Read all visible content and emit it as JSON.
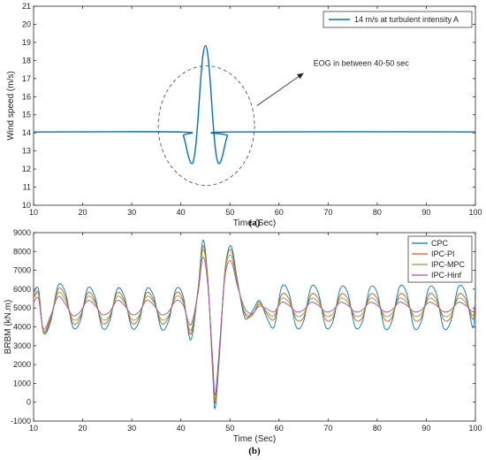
{
  "chart_data": [
    {
      "type": "line",
      "title": "",
      "xlabel": "Time (Sec)",
      "ylabel": "Wind speed (m/s)",
      "xlim": [
        10,
        100
      ],
      "ylim": [
        10,
        21
      ],
      "xticks": [
        10,
        20,
        30,
        40,
        50,
        60,
        70,
        80,
        90,
        100
      ],
      "yticks": [
        10,
        11,
        12,
        13,
        14,
        15,
        16,
        17,
        18,
        19,
        20,
        21
      ],
      "grid": false,
      "legend_position": "top-right",
      "caption": "(a)",
      "annotation": "EOG in between 40-50 sec",
      "series": [
        {
          "name": "14 m/s at turbulent intensity A",
          "color": "#0072BD",
          "x": [
            10,
            40,
            40.5,
            41,
            41.5,
            42,
            42.5,
            43,
            43.5,
            44,
            44.5,
            45,
            45.5,
            46,
            46.5,
            47,
            47.5,
            48,
            48.5,
            49,
            49.5,
            50,
            100
          ],
          "y": [
            14.05,
            14.05,
            13.85,
            13.35,
            12.75,
            12.35,
            12.4,
            13.2,
            14.8,
            16.8,
            18.3,
            18.82,
            18.3,
            16.8,
            14.8,
            13.2,
            12.4,
            12.35,
            12.75,
            13.35,
            13.85,
            14.05,
            14.05
          ]
        }
      ]
    },
    {
      "type": "line",
      "title": "",
      "xlabel": "Time (Sec)",
      "ylabel": "BRBM (kN.m)",
      "xlim": [
        10,
        100
      ],
      "ylim": [
        -1000,
        9000
      ],
      "xticks": [
        10,
        20,
        30,
        40,
        50,
        60,
        70,
        80,
        90,
        100
      ],
      "yticks": [
        -1000,
        0,
        1000,
        2000,
        3000,
        4000,
        5000,
        6000,
        7000,
        8000,
        9000
      ],
      "grid": false,
      "legend_position": "top-right",
      "caption": "(b)",
      "series": [
        {
          "name": "CPC",
          "color": "#0072BD",
          "x": [
            10,
            11,
            12,
            13.5,
            15,
            16.5,
            18,
            19.5,
            21,
            22.5,
            24,
            25.5,
            27,
            28.5,
            30,
            31.5,
            33,
            34.5,
            36,
            37.5,
            39,
            40.5,
            42,
            43.5,
            44.5,
            45.5,
            46.5,
            47,
            48,
            49,
            50.2,
            51.5,
            53,
            54.5,
            56,
            57.5,
            59,
            60.5,
            62,
            63.5,
            65,
            66.5,
            68,
            69.5,
            71,
            72.5,
            74,
            75.5,
            77,
            78.5,
            80,
            81.5,
            83,
            84.5,
            86,
            87.5,
            89,
            90.5,
            92,
            93.5,
            95,
            96.5,
            98,
            99.5,
            100
          ],
          "y": [
            5800,
            6000,
            3700,
            4300,
            6200,
            5800,
            4000,
            4300,
            6050,
            5600,
            3950,
            4300,
            6000,
            5600,
            3950,
            4300,
            6000,
            5600,
            3900,
            4300,
            6000,
            5600,
            3300,
            6000,
            8600,
            6500,
            1500,
            -300,
            3000,
            7000,
            8300,
            6500,
            4500,
            4800,
            5400,
            4500,
            4000,
            6100,
            5800,
            4000,
            4300,
            6100,
            5800,
            4000,
            4300,
            6050,
            5800,
            4000,
            4300,
            6050,
            5800,
            3950,
            4300,
            6100,
            5800,
            3950,
            4300,
            6050,
            5800,
            3950,
            4300,
            6100,
            5800,
            3950,
            6000
          ]
        },
        {
          "name": "IPC-PI",
          "color": "#D95319",
          "x": [
            10,
            11,
            12,
            13.5,
            15,
            16.5,
            18,
            19.5,
            21,
            22.5,
            24,
            25.5,
            27,
            28.5,
            30,
            31.5,
            33,
            34.5,
            36,
            37.5,
            39,
            40.5,
            42,
            43.5,
            44.5,
            45.5,
            46.5,
            47,
            48,
            49,
            50.2,
            51.5,
            53,
            54.5,
            56,
            57.5,
            59,
            60.5,
            62,
            63.5,
            65,
            66.5,
            68,
            69.5,
            71,
            72.5,
            74,
            75.5,
            77,
            78.5,
            80,
            81.5,
            83,
            84.5,
            86,
            87.5,
            89,
            90.5,
            92,
            93.5,
            95,
            96.5,
            98,
            99.5,
            100
          ],
          "y": [
            5600,
            5800,
            3750,
            4400,
            6000,
            5600,
            4200,
            4500,
            5800,
            5400,
            4200,
            4500,
            5800,
            5400,
            4200,
            4500,
            5800,
            5400,
            4200,
            4500,
            5800,
            5400,
            3600,
            6000,
            8300,
            6500,
            1700,
            0,
            3200,
            7000,
            8100,
            6400,
            4700,
            4600,
            5300,
            4700,
            4400,
            5700,
            5500,
            4400,
            4500,
            5700,
            5500,
            4400,
            4500,
            5700,
            5500,
            4400,
            4500,
            5700,
            5500,
            4400,
            4500,
            5700,
            5500,
            4400,
            4500,
            5700,
            5500,
            4400,
            4500,
            5700,
            5500,
            4400,
            5600
          ]
        },
        {
          "name": "IPC-MPC",
          "color": "#77AC30",
          "x": [
            10,
            11,
            12,
            13.5,
            15,
            16.5,
            18,
            19.5,
            21,
            22.5,
            24,
            25.5,
            27,
            28.5,
            30,
            31.5,
            33,
            34.5,
            36,
            37.5,
            39,
            40.5,
            42,
            43.5,
            44.5,
            45.5,
            46.5,
            47,
            48,
            49,
            50.2,
            51.5,
            53,
            54.5,
            56,
            57.5,
            59,
            60.5,
            62,
            63.5,
            65,
            66.5,
            68,
            69.5,
            71,
            72.5,
            74,
            75.5,
            77,
            78.5,
            80,
            81.5,
            83,
            84.5,
            86,
            87.5,
            89,
            90.5,
            92,
            93.5,
            95,
            96.5,
            98,
            99.5,
            100
          ],
          "y": [
            5500,
            5700,
            3800,
            4500,
            5800,
            5400,
            4400,
            4600,
            5600,
            5300,
            4400,
            4600,
            5600,
            5300,
            4400,
            4600,
            5600,
            5300,
            4400,
            4600,
            5600,
            5300,
            3800,
            5900,
            8100,
            6400,
            1900,
            200,
            3300,
            6900,
            7800,
            6300,
            4800,
            4650,
            5200,
            4800,
            4600,
            5500,
            5300,
            4600,
            4700,
            5500,
            5300,
            4600,
            4700,
            5500,
            5300,
            4600,
            4700,
            5500,
            5300,
            4600,
            4700,
            5500,
            5300,
            4600,
            4700,
            5500,
            5300,
            4600,
            4700,
            5500,
            5300,
            4600,
            5400
          ]
        },
        {
          "name": "IPC-Hinf",
          "color": "#A64BAF",
          "x": [
            10,
            11,
            12,
            13.5,
            15,
            16.5,
            18,
            19.5,
            21,
            22.5,
            24,
            25.5,
            27,
            28.5,
            30,
            31.5,
            33,
            34.5,
            36,
            37.5,
            39,
            40.5,
            42,
            43.5,
            44.5,
            45.5,
            46.5,
            47,
            48,
            49,
            50.2,
            51.5,
            53,
            54.5,
            56,
            57.5,
            59,
            60.5,
            62,
            63.5,
            65,
            66.5,
            68,
            69.5,
            71,
            72.5,
            74,
            75.5,
            77,
            78.5,
            80,
            81.5,
            83,
            84.5,
            86,
            87.5,
            89,
            90.5,
            92,
            93.5,
            95,
            96.5,
            98,
            99.5,
            100
          ],
          "y": [
            5300,
            5500,
            3900,
            4600,
            5600,
            5200,
            4600,
            4800,
            5400,
            5150,
            4650,
            4800,
            5400,
            5150,
            4650,
            4800,
            5400,
            5150,
            4650,
            4800,
            5400,
            5150,
            4100,
            5800,
            7700,
            6200,
            2200,
            400,
            3400,
            6700,
            7500,
            6200,
            5000,
            4700,
            5100,
            4950,
            4800,
            5300,
            5150,
            4800,
            4900,
            5300,
            5150,
            4800,
            4900,
            5300,
            5150,
            4800,
            4900,
            5300,
            5150,
            4800,
            4900,
            5300,
            5150,
            4800,
            4900,
            5300,
            5150,
            4800,
            4900,
            5300,
            5150,
            4800,
            5200
          ]
        }
      ]
    }
  ]
}
